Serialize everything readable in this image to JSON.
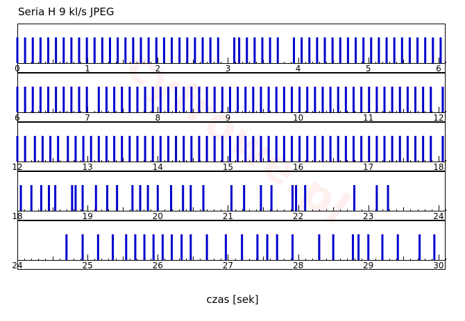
{
  "chart_data": {
    "type": "event-timeline",
    "title": "Seria H 9 kl/s JPEG",
    "xlabel": "czas [sek]",
    "bar_color": "#0000cc",
    "watermark_color": "#ff0000",
    "rows": [
      {
        "xlim": [
          0,
          6.1
        ],
        "ticks": [
          0,
          1,
          2,
          3,
          4,
          5,
          6
        ],
        "frames": [
          0.0,
          0.11,
          0.22,
          0.33,
          0.44,
          0.55,
          0.66,
          0.77,
          0.88,
          0.99,
          1.1,
          1.21,
          1.32,
          1.43,
          1.54,
          1.65,
          1.76,
          1.87,
          1.98,
          2.09,
          2.2,
          2.31,
          2.42,
          2.53,
          2.64,
          2.75,
          2.86,
          3.09,
          3.16,
          3.27,
          3.38,
          3.49,
          3.6,
          3.71,
          3.94,
          4.05,
          4.16,
          4.27,
          4.38,
          4.49,
          4.6,
          4.71,
          4.82,
          4.93,
          5.04,
          5.15,
          5.26,
          5.37,
          5.48,
          5.59,
          5.7,
          5.81,
          5.92,
          6.03
        ]
      },
      {
        "xlim": [
          6,
          12.1
        ],
        "ticks": [
          6,
          7,
          8,
          9,
          10,
          11,
          12
        ],
        "frames": [
          6.0,
          6.11,
          6.22,
          6.33,
          6.44,
          6.55,
          6.66,
          6.77,
          6.88,
          6.99,
          7.16,
          7.27,
          7.38,
          7.49,
          7.6,
          7.71,
          7.82,
          7.93,
          8.04,
          8.15,
          8.26,
          8.37,
          8.48,
          8.59,
          8.7,
          8.81,
          8.92,
          9.03,
          9.14,
          9.25,
          9.36,
          9.47,
          9.58,
          9.69,
          9.8,
          9.91,
          10.02,
          10.13,
          10.24,
          10.35,
          10.46,
          10.57,
          10.68,
          10.79,
          10.9,
          11.01,
          11.12,
          11.23,
          11.34,
          11.45,
          11.56,
          11.67,
          11.78,
          11.89,
          12.06
        ]
      },
      {
        "xlim": [
          12,
          18.1
        ],
        "ticks": [
          12,
          13,
          14,
          15,
          16,
          17,
          18
        ],
        "frames": [
          12.0,
          12.11,
          12.25,
          12.36,
          12.47,
          12.58,
          12.72,
          12.83,
          12.94,
          13.05,
          13.16,
          13.27,
          13.38,
          13.49,
          13.6,
          13.71,
          13.82,
          13.93,
          14.04,
          14.15,
          14.26,
          14.37,
          14.48,
          14.59,
          14.7,
          14.81,
          14.92,
          15.03,
          15.14,
          15.25,
          15.36,
          15.47,
          15.58,
          15.69,
          15.8,
          15.91,
          16.02,
          16.13,
          16.24,
          16.35,
          16.46,
          16.57,
          16.68,
          16.79,
          16.9,
          17.01,
          17.12,
          17.23,
          17.34,
          17.45,
          17.56,
          17.67,
          17.78,
          17.89,
          18.06
        ]
      },
      {
        "xlim": [
          18,
          24.1
        ],
        "ticks": [
          18,
          19,
          20,
          21,
          22,
          23,
          24
        ],
        "frames": [
          18.05,
          18.2,
          18.34,
          18.45,
          18.54,
          18.78,
          18.83,
          18.93,
          19.12,
          19.28,
          19.42,
          19.64,
          19.75,
          19.86,
          20.0,
          20.19,
          20.36,
          20.47,
          20.65,
          21.05,
          21.23,
          21.47,
          21.62,
          21.92,
          21.97,
          22.1,
          22.8,
          23.12,
          23.28
        ]
      },
      {
        "xlim": [
          24,
          30.1
        ],
        "ticks": [
          24,
          25,
          26,
          27,
          28,
          29,
          30
        ],
        "frames": [
          24.7,
          24.93,
          25.15,
          25.36,
          25.55,
          25.68,
          25.81,
          25.94,
          26.07,
          26.2,
          26.34,
          26.47,
          26.7,
          26.97,
          27.2,
          27.42,
          27.56,
          27.7,
          27.92,
          28.3,
          28.5,
          28.78,
          28.86,
          29.0,
          29.2,
          29.42,
          29.73,
          29.94
        ]
      }
    ]
  }
}
